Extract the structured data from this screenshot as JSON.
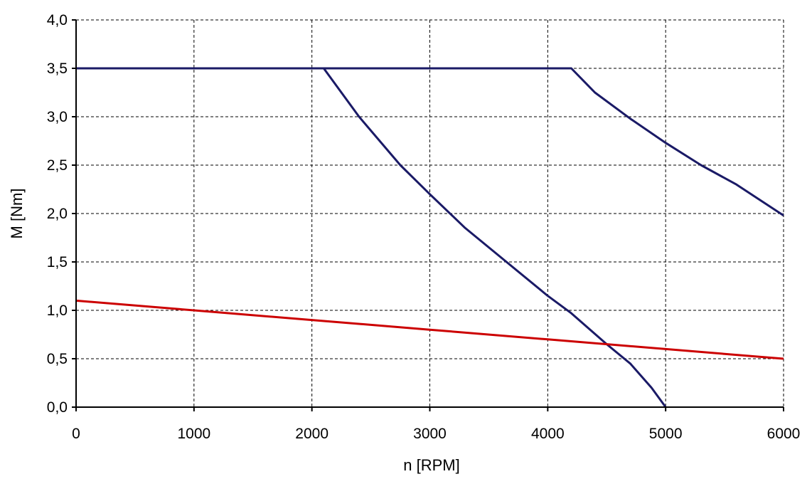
{
  "chart_data": {
    "type": "line",
    "title": "",
    "xlabel": "n [RPM]",
    "ylabel": "M [Nm]",
    "xlim": [
      0,
      6000
    ],
    "ylim": [
      0,
      4
    ],
    "x_ticks": [
      0,
      1000,
      2000,
      3000,
      4000,
      5000,
      6000
    ],
    "x_tick_labels": [
      "0",
      "1000",
      "2000",
      "3000",
      "4000",
      "5000",
      "6000"
    ],
    "y_ticks": [
      0,
      0.5,
      1,
      1.5,
      2,
      2.5,
      3,
      3.5,
      4
    ],
    "y_tick_labels": [
      "0,0",
      "0,5",
      "1,0",
      "1,5",
      "2,0",
      "2,5",
      "3,0",
      "3,5",
      "4,0"
    ],
    "grid": true,
    "legend": "none",
    "series": [
      {
        "color": "#1a1a66",
        "x": [
          0,
          2100,
          2400,
          2750,
          3000,
          3300,
          3650,
          4000,
          4200,
          4500,
          4700,
          4880,
          5000
        ],
        "y": [
          3.5,
          3.5,
          3.0,
          2.5,
          2.2,
          1.85,
          1.5,
          1.15,
          0.97,
          0.65,
          0.45,
          0.2,
          0.0
        ]
      },
      {
        "color": "#1a1a66",
        "x": [
          0,
          4200,
          4400,
          4700,
          5000,
          5300,
          5600,
          6000
        ],
        "y": [
          3.5,
          3.5,
          3.25,
          2.98,
          2.73,
          2.5,
          2.3,
          1.98
        ]
      },
      {
        "color": "#cc0000",
        "x": [
          0,
          1000,
          2000,
          3000,
          4000,
          5000,
          6000
        ],
        "y": [
          1.1,
          1.0,
          0.9,
          0.8,
          0.7,
          0.6,
          0.5
        ]
      }
    ]
  }
}
